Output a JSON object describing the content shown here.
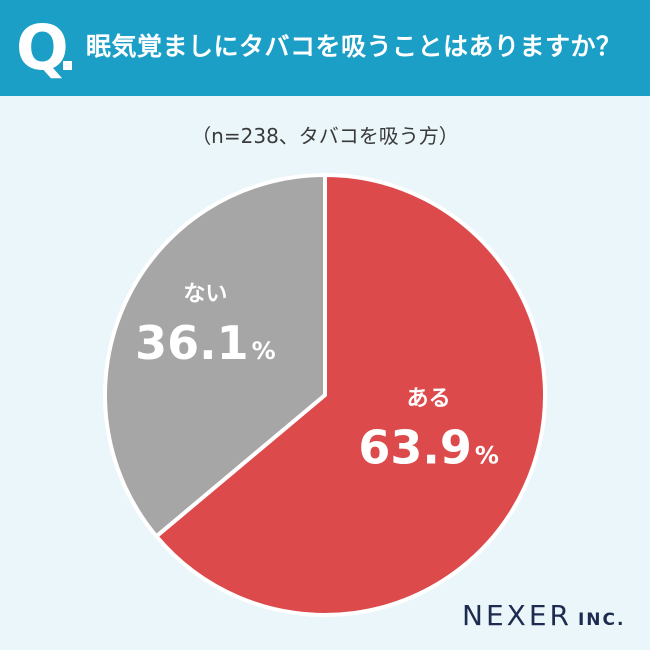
{
  "header": {
    "q_label": "Q",
    "question": "眠気覚ましにタバコを吸うことはありますか？"
  },
  "subtitle": "（n=238、タバコを吸う方）",
  "chart_data": {
    "type": "pie",
    "start": "12 o'clock, clockwise",
    "categories": [
      "ある",
      "ない"
    ],
    "values": [
      63.9,
      36.1
    ],
    "value_labels": [
      "63.9",
      "36.1"
    ],
    "unit": "%",
    "colors": [
      "#dd4a4c",
      "#a6a6a6"
    ],
    "title": ""
  },
  "brand": {
    "name": "NEXER",
    "suffix": "INC."
  }
}
